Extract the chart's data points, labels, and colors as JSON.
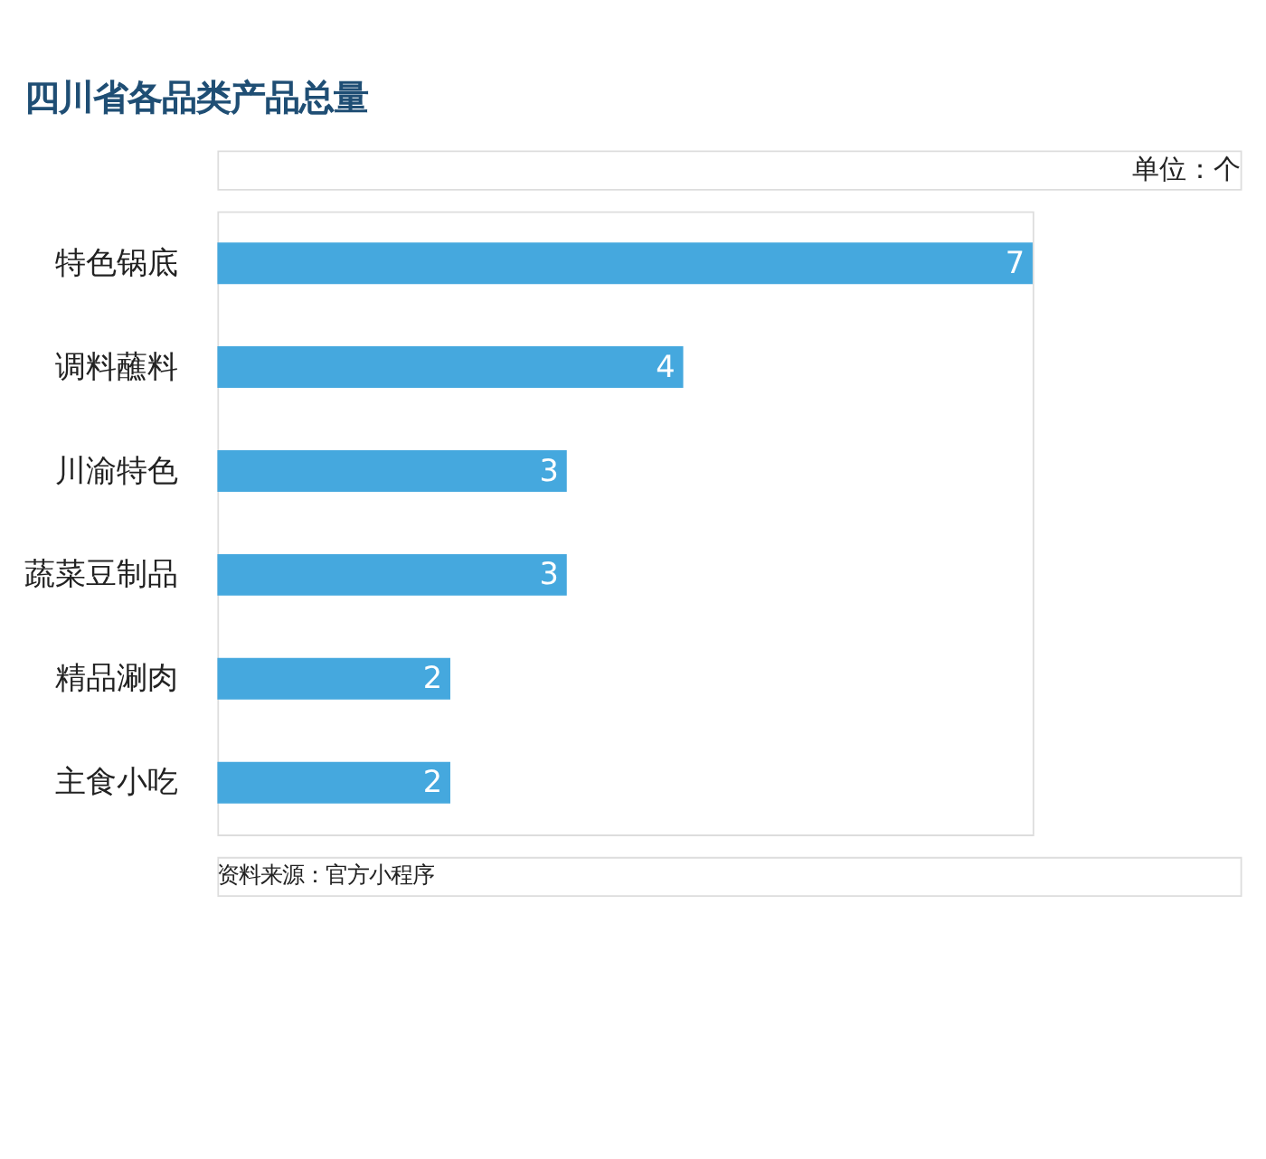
{
  "chart_data": {
    "type": "bar",
    "orientation": "horizontal",
    "title": "四川省各品类产品总量",
    "categories": [
      "特色锅底",
      "调料蘸料",
      "川渝特色",
      "蔬菜豆制品",
      "精品涮肉",
      "主食小吃"
    ],
    "values": [
      7,
      4,
      3,
      3,
      2,
      2
    ],
    "color": "#45a8de",
    "data_labels": true,
    "grid": false,
    "annotations": [
      "单位：个",
      "资料来源：官方小程序"
    ]
  }
}
